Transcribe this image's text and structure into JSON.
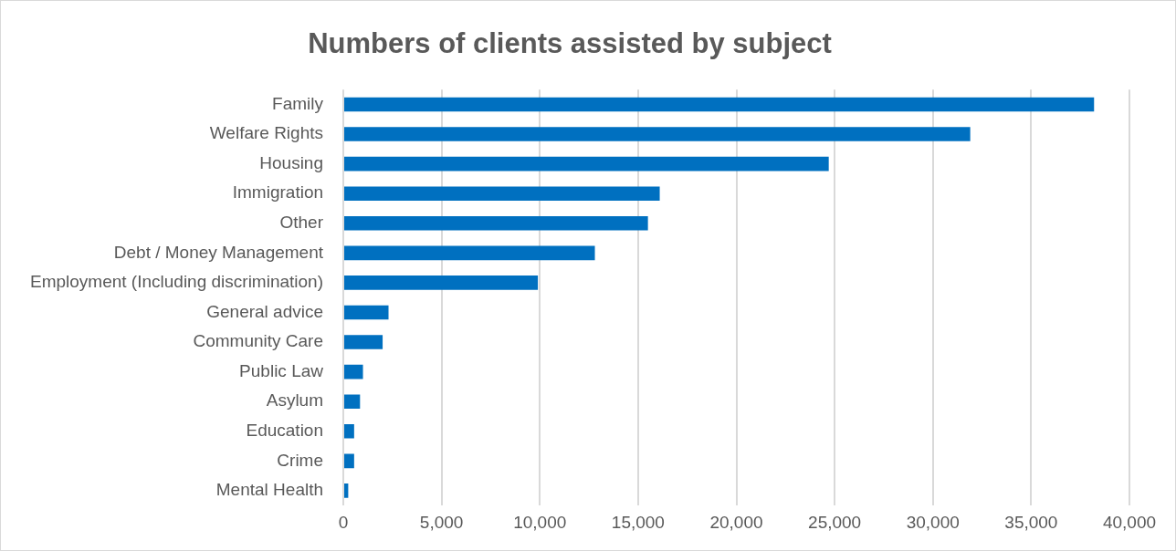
{
  "chart_data": {
    "type": "bar",
    "orientation": "horizontal",
    "title": "Numbers of clients assisted by subject",
    "categories": [
      "Family",
      "Welfare Rights",
      "Housing",
      "Immigration",
      "Other",
      "Debt / Money Management",
      "Employment (Including discrimination)",
      "General advice",
      "Community Care",
      "Public Law",
      "Asylum",
      "Education",
      "Crime",
      "Mental Health"
    ],
    "values": [
      38200,
      31900,
      24700,
      16100,
      15500,
      12800,
      9900,
      2300,
      2000,
      1000,
      850,
      550,
      550,
      250
    ],
    "color": "#0070c0",
    "xlim": [
      0,
      40000
    ],
    "xticks": [
      0,
      {
        "value": 5000,
        "label": "5,000"
      },
      {
        "value": 10000,
        "label": "10,000"
      },
      {
        "value": 15000,
        "label": "15,000"
      },
      {
        "value": 20000,
        "label": "20,000"
      },
      {
        "value": 25000,
        "label": "25,000"
      },
      {
        "value": 30000,
        "label": "30,000"
      },
      {
        "value": 35000,
        "label": "35,000"
      },
      {
        "value": 40000,
        "label": "40,000"
      }
    ],
    "grid": "x",
    "legend": false
  }
}
